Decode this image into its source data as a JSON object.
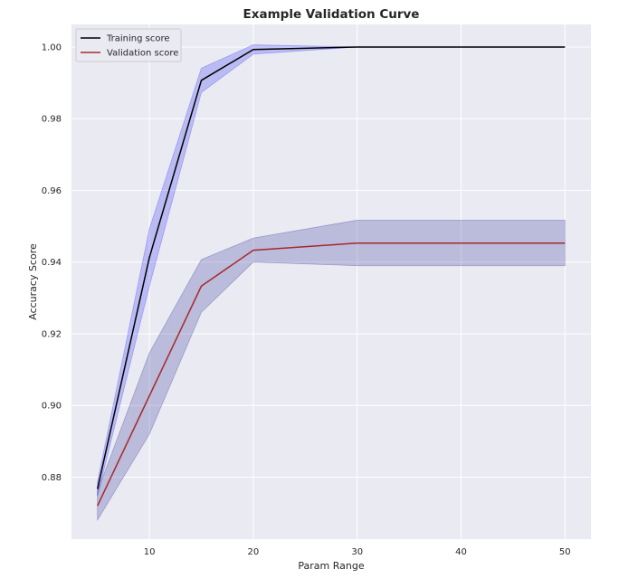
{
  "chart_data": {
    "type": "line",
    "title": "Example Validation Curve",
    "xlabel": "Param Range",
    "ylabel": "Accuracy Score",
    "x": [
      5,
      10,
      15,
      20,
      30,
      50
    ],
    "xlim": [
      2.5,
      52.5
    ],
    "ylim": [
      0.8627,
      1.0063
    ],
    "x_ticks": [
      10,
      20,
      30,
      40,
      50
    ],
    "x_tick_labels": [
      "10",
      "20",
      "30",
      "40",
      "50"
    ],
    "y_ticks": [
      0.88,
      0.9,
      0.92,
      0.94,
      0.96,
      0.98,
      1.0
    ],
    "y_tick_labels": [
      "0.88",
      "0.90",
      "0.92",
      "0.94",
      "0.96",
      "0.98",
      "1.00"
    ],
    "grid": true,
    "legend_position": "top-left",
    "series": [
      {
        "name": "Training score",
        "color": "#000000",
        "values": [
          0.8767,
          0.9413,
          0.9907,
          0.9993,
          1.0,
          1.0
        ],
        "band_upper": [
          0.8787,
          0.9493,
          0.9941,
          1.0006,
          1.0,
          1.0
        ],
        "band_lower": [
          0.8747,
          0.9333,
          0.9873,
          0.998,
          1.0,
          1.0
        ],
        "band_color": "#0000ff"
      },
      {
        "name": "Validation score",
        "color": "#a52a2a",
        "values": [
          0.872,
          0.9027,
          0.9333,
          0.9433,
          0.9453,
          0.9453
        ],
        "band_upper": [
          0.876,
          0.9147,
          0.9407,
          0.9467,
          0.9517,
          0.9517
        ],
        "band_lower": [
          0.868,
          0.892,
          0.926,
          0.94,
          0.939,
          0.939
        ],
        "band_color": "#000080"
      }
    ]
  }
}
